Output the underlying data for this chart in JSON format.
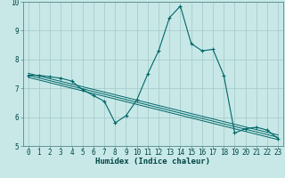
{
  "xlabel": "Humidex (Indice chaleur)",
  "background_color": "#c8e8e8",
  "grid_color": "#a8cccc",
  "line_color": "#006666",
  "spine_color": "#558888",
  "xlim": [
    -0.5,
    23.5
  ],
  "ylim": [
    5,
    10
  ],
  "yticks": [
    5,
    6,
    7,
    8,
    9,
    10
  ],
  "xticks": [
    0,
    1,
    2,
    3,
    4,
    5,
    6,
    7,
    8,
    9,
    10,
    11,
    12,
    13,
    14,
    15,
    16,
    17,
    18,
    19,
    20,
    21,
    22,
    23
  ],
  "main_x": [
    0,
    1,
    2,
    3,
    4,
    5,
    6,
    7,
    8,
    9,
    10,
    11,
    12,
    13,
    14,
    15,
    16,
    17,
    18,
    19,
    20,
    21,
    22,
    23
  ],
  "main_y": [
    7.45,
    7.45,
    7.4,
    7.35,
    7.25,
    6.95,
    6.75,
    6.55,
    5.8,
    6.05,
    6.6,
    7.5,
    8.3,
    9.45,
    9.85,
    8.55,
    8.3,
    8.35,
    7.45,
    5.45,
    5.6,
    5.65,
    5.55,
    5.25
  ],
  "reg_lines": [
    {
      "x": [
        0,
        23
      ],
      "y": [
        7.52,
        5.38
      ]
    },
    {
      "x": [
        0,
        23
      ],
      "y": [
        7.45,
        5.3
      ]
    },
    {
      "x": [
        0,
        23
      ],
      "y": [
        7.38,
        5.22
      ]
    }
  ],
  "tick_fontsize": 5.5,
  "xlabel_fontsize": 6.5
}
